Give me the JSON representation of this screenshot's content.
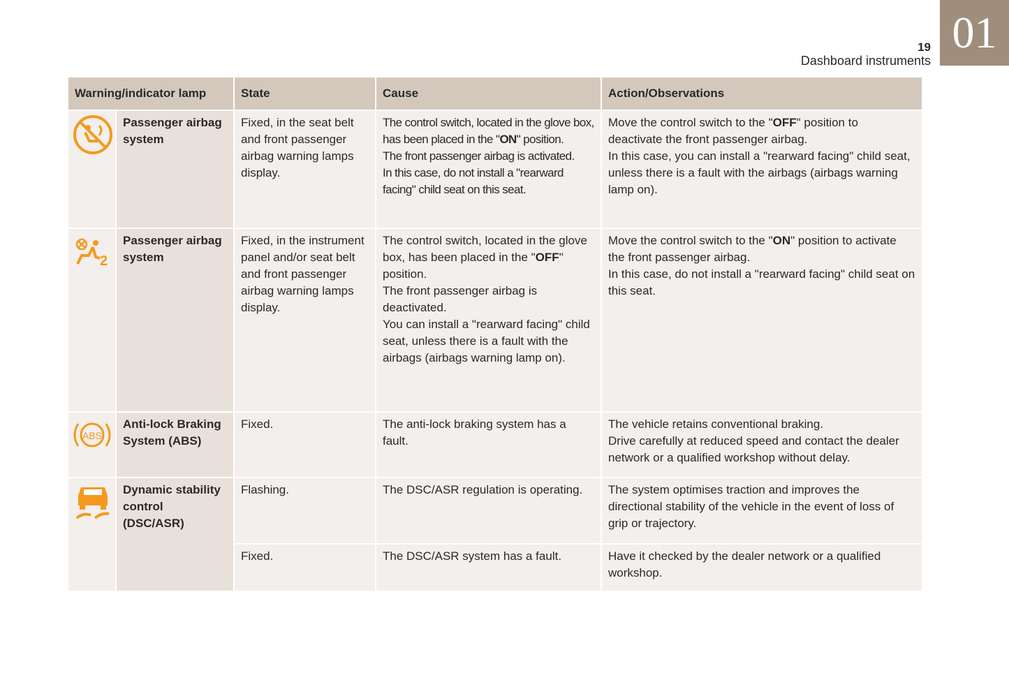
{
  "header": {
    "page_number": "19",
    "section": "Dashboard instruments",
    "chapter": "01"
  },
  "table": {
    "columns": [
      "Warning/indicator lamp",
      "State",
      "Cause",
      "Action/Observations"
    ],
    "rows": [
      {
        "lamp": "Passenger airbag system",
        "entries": [
          {
            "state": "Fixed, in the seat belt and front passenger airbag warning lamps display.",
            "cause": [
              [
                "The control switch, located in the glove box, has been placed in the \"",
                "ON",
                "\" position."
              ],
              [
                "The front passenger airbag is activated."
              ],
              [
                "In this case, do not install a \"rearward facing\" child seat on this seat."
              ]
            ],
            "action": [
              [
                "Move the control switch to the \"",
                "OFF",
                "\" position to deactivate the front passenger airbag."
              ],
              [
                "In this case, you can install a \"rearward facing\" child seat, unless there is a fault with the airbags (airbags warning lamp on)."
              ]
            ]
          }
        ]
      },
      {
        "lamp": "Passenger airbag system",
        "entries": [
          {
            "state": "Fixed, in the instrument panel and/or seat belt and front passenger airbag warning lamps display.",
            "cause": [
              [
                "The control switch, located in the glove box, has been placed in the \"",
                "OFF",
                "\" position."
              ],
              [
                "The front passenger airbag is deactivated."
              ],
              [
                "You can install a \"rearward facing\" child seat, unless there is a fault with the airbags (airbags warning lamp on)."
              ]
            ],
            "action": [
              [
                "Move the control switch to the \"",
                "ON",
                "\" position to activate the front passenger airbag."
              ],
              [
                "In this case, do not install a \"rearward facing\" child seat on this seat."
              ]
            ]
          }
        ]
      },
      {
        "lamp": "Anti-lock Braking System (ABS)",
        "entries": [
          {
            "state": "Fixed.",
            "cause": [
              [
                "The anti-lock braking system has a fault."
              ]
            ],
            "action": [
              [
                "The vehicle retains conventional braking."
              ],
              [
                "Drive carefully at reduced speed and contact the dealer network or a qualified workshop without delay."
              ]
            ]
          }
        ]
      },
      {
        "lamp": "Dynamic stability control (DSC/ASR)",
        "entries": [
          {
            "state": "Flashing.",
            "cause": [
              [
                "The DSC/ASR regulation is operating."
              ]
            ],
            "action": [
              [
                "The system optimises traction and improves the directional stability of the vehicle in the event of loss of grip or trajectory."
              ]
            ]
          },
          {
            "state": "Fixed.",
            "cause": [
              [
                "The DSC/ASR system has a fault."
              ]
            ],
            "action": [
              [
                "Have it checked by the dealer network or a qualified workshop."
              ]
            ]
          }
        ]
      }
    ]
  }
}
